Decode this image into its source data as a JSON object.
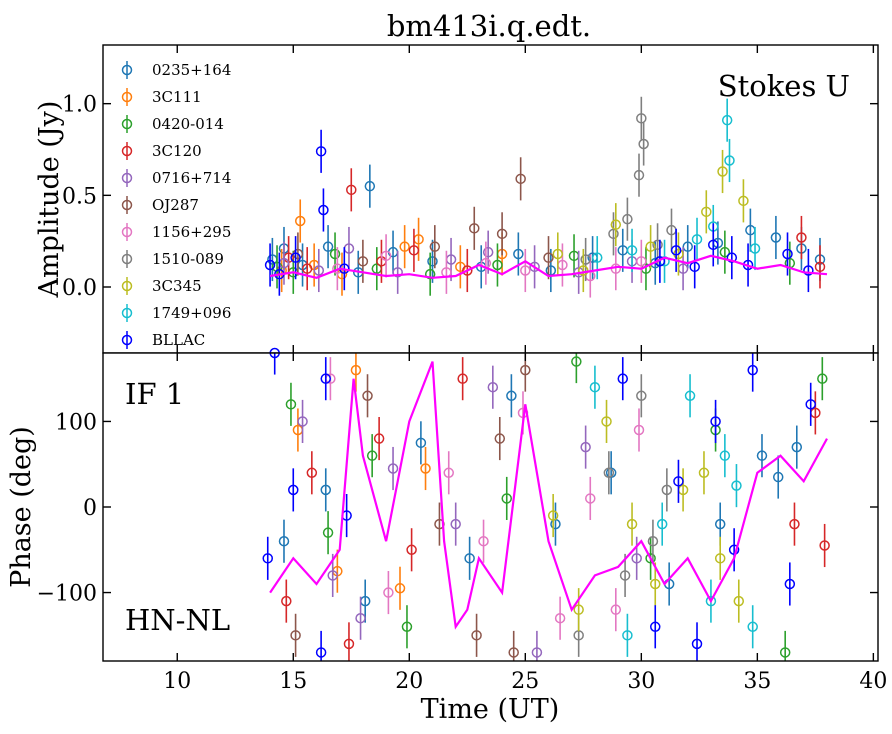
{
  "chart_data": [
    {
      "type": "scatter",
      "panel": "amplitude",
      "title": "bm413i.q.edt.",
      "xlabel": "",
      "ylabel": "Amplitude (Jy)",
      "annotation": "Stokes U",
      "xlim": [
        6.8,
        40.2
      ],
      "ylim": [
        -0.36,
        1.32
      ],
      "yticks": [
        0.0,
        0.5,
        1.0
      ],
      "ytick_labels": [
        "0.0",
        "0.5",
        "1.0"
      ],
      "xticks": [
        10,
        15,
        20,
        25,
        30,
        35,
        40
      ],
      "legend": "upper-left",
      "series": [
        {
          "name": "0235+164",
          "color": "#1f77b4",
          "x": [
            14.1,
            14.6,
            15.4,
            16.5,
            17.8,
            18.3,
            19.3,
            21.0,
            23.1,
            24.7,
            26.1,
            27.9,
            29.2,
            30.6,
            32.0,
            33.3,
            34.7,
            35.8,
            36.9,
            37.7
          ],
          "y": [
            0.15,
            0.21,
            0.12,
            0.22,
            0.08,
            0.55,
            0.19,
            0.14,
            0.11,
            0.18,
            0.09,
            0.16,
            0.2,
            0.13,
            0.22,
            0.24,
            0.31,
            0.27,
            0.21,
            0.15
          ]
        },
        {
          "name": "3C111",
          "color": "#ff7f0e",
          "x": [
            14.5,
            15.3,
            15.9,
            17.1,
            19.8,
            20.4,
            22.2,
            24.0
          ],
          "y": [
            0.09,
            0.36,
            0.12,
            0.07,
            0.22,
            0.26,
            0.11,
            0.18
          ]
        },
        {
          "name": "0420-014",
          "color": "#2ca02c",
          "x": [
            14.3,
            15.0,
            16.8,
            18.6,
            20.9,
            23.8,
            27.1,
            30.2,
            33.6,
            36.4
          ],
          "y": [
            0.11,
            0.08,
            0.18,
            0.1,
            0.07,
            0.12,
            0.17,
            0.1,
            0.19,
            0.13
          ]
        },
        {
          "name": "3C120",
          "color": "#d62728",
          "x": [
            14.8,
            15.6,
            17.5,
            18.8,
            20.2,
            22.5,
            36.9,
            37.7
          ],
          "y": [
            0.16,
            0.1,
            0.53,
            0.14,
            0.2,
            0.09,
            0.27,
            0.11
          ]
        },
        {
          "name": "0716+714",
          "color": "#9467bd",
          "x": [
            14.6,
            16.1,
            17.4,
            19.5,
            21.8,
            23.4,
            25.4,
            27.3,
            29.6,
            31.8
          ],
          "y": [
            0.13,
            0.09,
            0.21,
            0.08,
            0.15,
            0.19,
            0.11,
            0.08,
            0.14,
            0.1
          ]
        },
        {
          "name": "OJ287",
          "color": "#8c564b",
          "x": [
            15.2,
            18.0,
            21.1,
            22.8,
            24.0,
            24.8,
            26.0
          ],
          "y": [
            0.18,
            0.14,
            0.22,
            0.32,
            0.29,
            0.59,
            0.16
          ]
        },
        {
          "name": "1156+295",
          "color": "#e377c2",
          "x": [
            16.9,
            19.0,
            21.6,
            23.3,
            25.0,
            26.6,
            27.8,
            28.9,
            30.0
          ],
          "y": [
            0.1,
            0.17,
            0.08,
            0.13,
            0.09,
            0.12,
            0.06,
            0.1,
            0.14
          ]
        },
        {
          "name": "1510-089",
          "color": "#7f7f7f",
          "x": [
            27.6,
            28.8,
            29.4,
            29.9,
            30.0,
            30.1,
            30.7,
            31.3
          ],
          "y": [
            0.15,
            0.29,
            0.37,
            0.61,
            0.92,
            0.78,
            0.23,
            0.31
          ]
        },
        {
          "name": "3C345",
          "color": "#bcbd22",
          "x": [
            26.4,
            27.5,
            28.9,
            30.4,
            31.6,
            32.8,
            33.5,
            34.4
          ],
          "y": [
            0.18,
            0.09,
            0.34,
            0.22,
            0.18,
            0.41,
            0.63,
            0.47
          ]
        },
        {
          "name": "1749+096",
          "color": "#17becf",
          "x": [
            28.1,
            29.6,
            31.0,
            32.4,
            33.1,
            33.7,
            33.8,
            34.9
          ],
          "y": [
            0.16,
            0.2,
            0.14,
            0.26,
            0.33,
            0.91,
            0.69,
            0.21
          ]
        },
        {
          "name": "BLLAC",
          "color": "#0000ff",
          "x": [
            14.0,
            14.4,
            15.1,
            16.2,
            16.3,
            17.2,
            30.8,
            31.5,
            32.3,
            33.1,
            33.9,
            34.6,
            36.3,
            37.2
          ],
          "y": [
            0.12,
            0.07,
            0.16,
            0.74,
            0.42,
            0.1,
            0.14,
            0.2,
            0.11,
            0.23,
            0.16,
            0.12,
            0.18,
            0.09
          ]
        }
      ],
      "model_line": {
        "color": "#ff00ff",
        "x": [
          14.0,
          15.0,
          16.0,
          17.0,
          18.0,
          19.0,
          20.0,
          21.0,
          22.0,
          23.0,
          24.0,
          25.0,
          26.0,
          27.0,
          28.0,
          29.0,
          30.0,
          31.0,
          32.0,
          33.0,
          34.0,
          35.0,
          36.0,
          37.0,
          38.0
        ],
        "y": [
          0.06,
          0.08,
          0.05,
          0.1,
          0.08,
          0.06,
          0.07,
          0.05,
          0.06,
          0.12,
          0.07,
          0.14,
          0.06,
          0.07,
          0.09,
          0.11,
          0.1,
          0.16,
          0.13,
          0.17,
          0.14,
          0.1,
          0.12,
          0.08,
          0.07
        ]
      }
    },
    {
      "type": "scatter",
      "panel": "phase",
      "xlabel": "Time (UT)",
      "ylabel": "Phase (deg)",
      "annotations": [
        "IF 1",
        "HN-NL"
      ],
      "xlim": [
        6.8,
        40.2
      ],
      "ylim": [
        -180,
        180
      ],
      "yticks": [
        -100,
        0,
        100
      ],
      "ytick_labels": [
        "−100",
        "0",
        "100"
      ],
      "xticks": [
        10,
        15,
        20,
        25,
        30,
        35,
        40
      ],
      "xtick_labels": [
        "10",
        "15",
        "20",
        "25",
        "30",
        "35",
        "40"
      ],
      "series": [
        {
          "name": "0235+164",
          "color": "#1f77b4",
          "x": [
            14.6,
            16.4,
            18.1,
            20.5,
            22.6,
            24.4,
            26.3,
            28.7,
            31.2,
            33.4,
            35.2,
            35.9,
            36.7
          ],
          "y": [
            -40,
            20,
            -110,
            75,
            -60,
            130,
            -20,
            40,
            -90,
            -20,
            60,
            35,
            70
          ]
        },
        {
          "name": "3C111",
          "color": "#ff7f0e",
          "x": [
            15.2,
            16.9,
            17.7,
            19.6,
            20.7
          ],
          "y": [
            90,
            -75,
            160,
            -95,
            45
          ]
        },
        {
          "name": "0420-014",
          "color": "#2ca02c",
          "x": [
            14.9,
            16.5,
            18.4,
            19.9,
            24.2,
            27.2,
            30.4,
            33.2,
            36.2,
            37.8
          ],
          "y": [
            120,
            -30,
            60,
            -140,
            10,
            170,
            -60,
            90,
            -170,
            150
          ]
        },
        {
          "name": "3C120",
          "color": "#d62728",
          "x": [
            14.7,
            15.8,
            17.4,
            18.7,
            20.1,
            22.3,
            36.6,
            37.5,
            37.9
          ],
          "y": [
            -110,
            40,
            -160,
            80,
            -50,
            150,
            -20,
            110,
            -45
          ]
        },
        {
          "name": "0716+714",
          "color": "#9467bd",
          "x": [
            15.4,
            16.7,
            17.9,
            19.3,
            22.0,
            23.6,
            25.5,
            27.6,
            29.8
          ],
          "y": [
            100,
            -80,
            -130,
            45,
            -20,
            140,
            -170,
            70,
            -60
          ]
        },
        {
          "name": "OJ287",
          "color": "#8c564b",
          "x": [
            15.1,
            18.2,
            21.3,
            22.9,
            23.9,
            24.5,
            25.0
          ],
          "y": [
            -150,
            130,
            -20,
            -150,
            80,
            -170,
            160
          ]
        },
        {
          "name": "1156+295",
          "color": "#e377c2",
          "x": [
            16.6,
            19.1,
            21.7,
            23.2,
            24.9,
            26.5,
            27.8,
            28.9,
            29.9
          ],
          "y": [
            150,
            -100,
            40,
            -40,
            110,
            -130,
            10,
            -120,
            90
          ]
        },
        {
          "name": "1510-089",
          "color": "#7f7f7f",
          "x": [
            27.3,
            28.6,
            29.3,
            30.0,
            30.5,
            31.1
          ],
          "y": [
            -150,
            40,
            -80,
            130,
            -40,
            20
          ]
        },
        {
          "name": "3C345",
          "color": "#bcbd22",
          "x": [
            26.2,
            27.3,
            28.5,
            29.6,
            30.6,
            31.8,
            32.7,
            33.4,
            34.2
          ],
          "y": [
            -10,
            -120,
            100,
            -20,
            -90,
            20,
            40,
            -60,
            -110
          ]
        },
        {
          "name": "1749+096",
          "color": "#17becf",
          "x": [
            28.0,
            29.4,
            30.9,
            32.1,
            33.0,
            33.6,
            34.1,
            34.8
          ],
          "y": [
            140,
            -150,
            -20,
            130,
            -110,
            60,
            25,
            -140
          ]
        },
        {
          "name": "BLLAC",
          "color": "#0000ff",
          "x": [
            13.9,
            14.2,
            15.0,
            16.2,
            16.4,
            17.3,
            29.2,
            30.6,
            31.6,
            32.4,
            33.2,
            34.0,
            34.8,
            36.4,
            37.3
          ],
          "y": [
            -60,
            180,
            20,
            -170,
            150,
            -10,
            150,
            -140,
            30,
            -160,
            100,
            -50,
            160,
            -90,
            120
          ]
        }
      ],
      "model_line": {
        "color": "#ff00ff",
        "x": [
          14.0,
          15.0,
          16.0,
          17.0,
          17.6,
          18.0,
          19.0,
          20.0,
          21.0,
          21.5,
          22.0,
          22.5,
          23.0,
          24.0,
          25.0,
          26.0,
          27.0,
          28.0,
          29.0,
          30.0,
          31.0,
          32.0,
          33.0,
          34.0,
          35.0,
          36.0,
          37.0,
          38.0
        ],
        "y": [
          -100,
          -60,
          -90,
          -50,
          150,
          60,
          -40,
          100,
          170,
          -40,
          -140,
          -120,
          -60,
          -100,
          120,
          -40,
          -120,
          -80,
          -70,
          -40,
          -90,
          -60,
          -110,
          -60,
          40,
          60,
          30,
          80
        ]
      }
    }
  ],
  "legend": {
    "entries": [
      "0235+164",
      "3C111",
      "0420-014",
      "3C120",
      "0716+714",
      "OJ287",
      "1156+295",
      "1510-089",
      "3C345",
      "1749+096",
      "BLLAC"
    ]
  }
}
